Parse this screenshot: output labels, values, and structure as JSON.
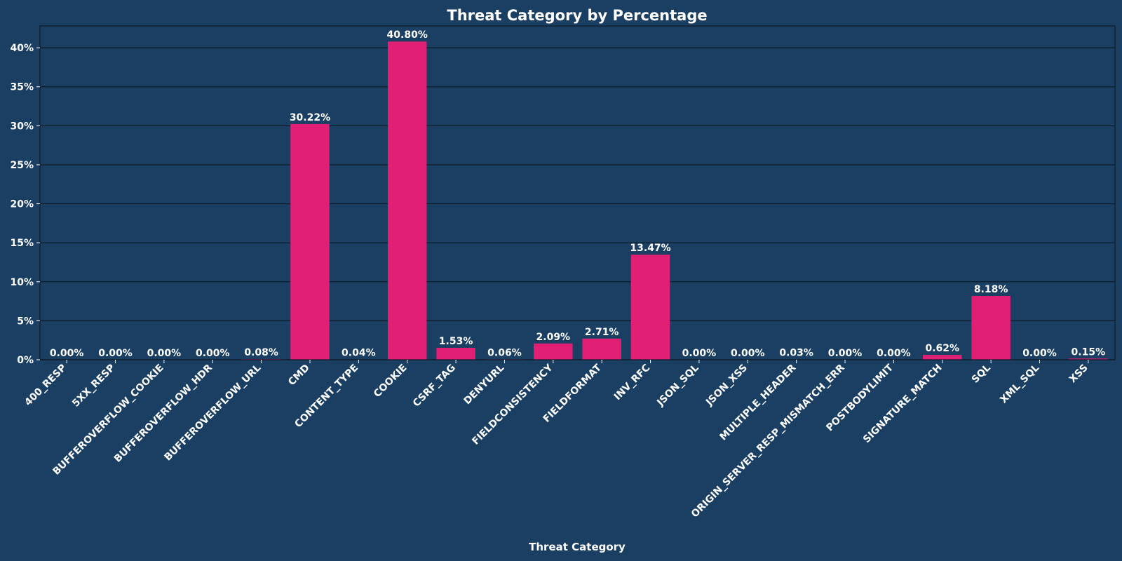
{
  "colors": {
    "background": "#1b3f62",
    "bar": "#e01f75",
    "grid": "#0d1b2a",
    "text": "#ffffff"
  },
  "chart_data": {
    "type": "bar",
    "title": "Threat Category by Percentage",
    "xlabel": "Threat Category",
    "ylabel": "",
    "ylim": [
      0,
      42.8
    ],
    "yticks": [
      0,
      5,
      10,
      15,
      20,
      25,
      30,
      35,
      40
    ],
    "ytick_labels": [
      "0%",
      "5%",
      "10%",
      "15%",
      "20%",
      "25%",
      "30%",
      "35%",
      "40%"
    ],
    "grid": true,
    "categories": [
      "400_RESP",
      "5XX_RESP",
      "BUFFEROVERFLOW_COOKIE",
      "BUFFEROVERFLOW_HDR",
      "BUFFEROVERFLOW_URL",
      "CMD",
      "CONTENT_TYPE",
      "COOKIE",
      "CSRF_TAG",
      "DENYURL",
      "FIELDCONSISTENCY",
      "FIELDFORMAT",
      "INV_RFC",
      "JSON_SQL",
      "JSON_XSS",
      "MULTIPLE_HEADER",
      "ORIGIN_SERVER_RESP_MISMATCH_ERR",
      "POSTBODYLIMIT",
      "SIGNATURE_MATCH",
      "SQL",
      "XML_SQL",
      "XSS"
    ],
    "values": [
      0.0,
      0.0,
      0.0,
      0.0,
      0.08,
      30.22,
      0.04,
      40.8,
      1.53,
      0.06,
      2.09,
      2.71,
      13.47,
      0.0,
      0.0,
      0.03,
      0.0,
      0.0,
      0.62,
      8.18,
      0.0,
      0.15
    ],
    "value_labels": [
      "0.00%",
      "0.00%",
      "0.00%",
      "0.00%",
      "0.08%",
      "30.22%",
      "0.04%",
      "40.80%",
      "1.53%",
      "0.06%",
      "2.09%",
      "2.71%",
      "13.47%",
      "0.00%",
      "0.00%",
      "0.03%",
      "0.00%",
      "0.00%",
      "0.62%",
      "8.18%",
      "0.00%",
      "0.15%"
    ]
  }
}
